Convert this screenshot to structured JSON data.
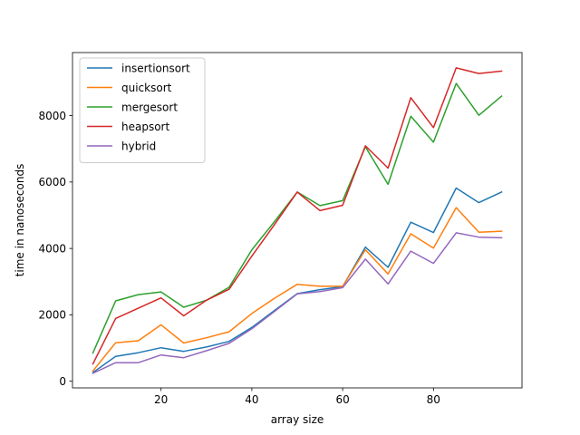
{
  "chart_data": {
    "type": "line",
    "title": "",
    "xlabel": "array size",
    "ylabel": "time in nanoseconds",
    "x": [
      5,
      10,
      15,
      20,
      25,
      30,
      35,
      40,
      45,
      50,
      55,
      60,
      65,
      70,
      75,
      80,
      85,
      90,
      95
    ],
    "xlim": [
      0.5,
      99.5
    ],
    "ylim": [
      -200,
      9900
    ],
    "xticks": [
      20,
      40,
      60,
      80
    ],
    "yticks": [
      0,
      2000,
      4000,
      6000,
      8000
    ],
    "grid": false,
    "legend_position": "top-left",
    "series": [
      {
        "name": "insertionsort",
        "color": "#1f77b4",
        "values": [
          260,
          750,
          860,
          1010,
          900,
          1030,
          1200,
          1620,
          2130,
          2640,
          2760,
          2850,
          4040,
          3430,
          4790,
          4480,
          5820,
          5380,
          5700
        ]
      },
      {
        "name": "quicksort",
        "color": "#ff7f0e",
        "values": [
          310,
          1160,
          1220,
          1700,
          1150,
          1310,
          1490,
          2040,
          2500,
          2920,
          2860,
          2860,
          3960,
          3230,
          4440,
          4010,
          5230,
          4490,
          4520
        ]
      },
      {
        "name": "mergesort",
        "color": "#2ca02c",
        "values": [
          850,
          2420,
          2610,
          2690,
          2230,
          2440,
          2830,
          3960,
          4810,
          5700,
          5290,
          5440,
          7060,
          5930,
          7980,
          7200,
          8970,
          8010,
          8590
        ]
      },
      {
        "name": "heapsort",
        "color": "#d62728",
        "values": [
          520,
          1890,
          2200,
          2510,
          1970,
          2440,
          2770,
          3770,
          4720,
          5700,
          5140,
          5300,
          7090,
          6420,
          8540,
          7640,
          9440,
          9270,
          9340
        ]
      },
      {
        "name": "hybrid",
        "color": "#9467bd",
        "values": [
          240,
          560,
          560,
          790,
          710,
          920,
          1140,
          1580,
          2100,
          2630,
          2700,
          2820,
          3680,
          2930,
          3920,
          3550,
          4470,
          4340,
          4320
        ]
      }
    ]
  }
}
